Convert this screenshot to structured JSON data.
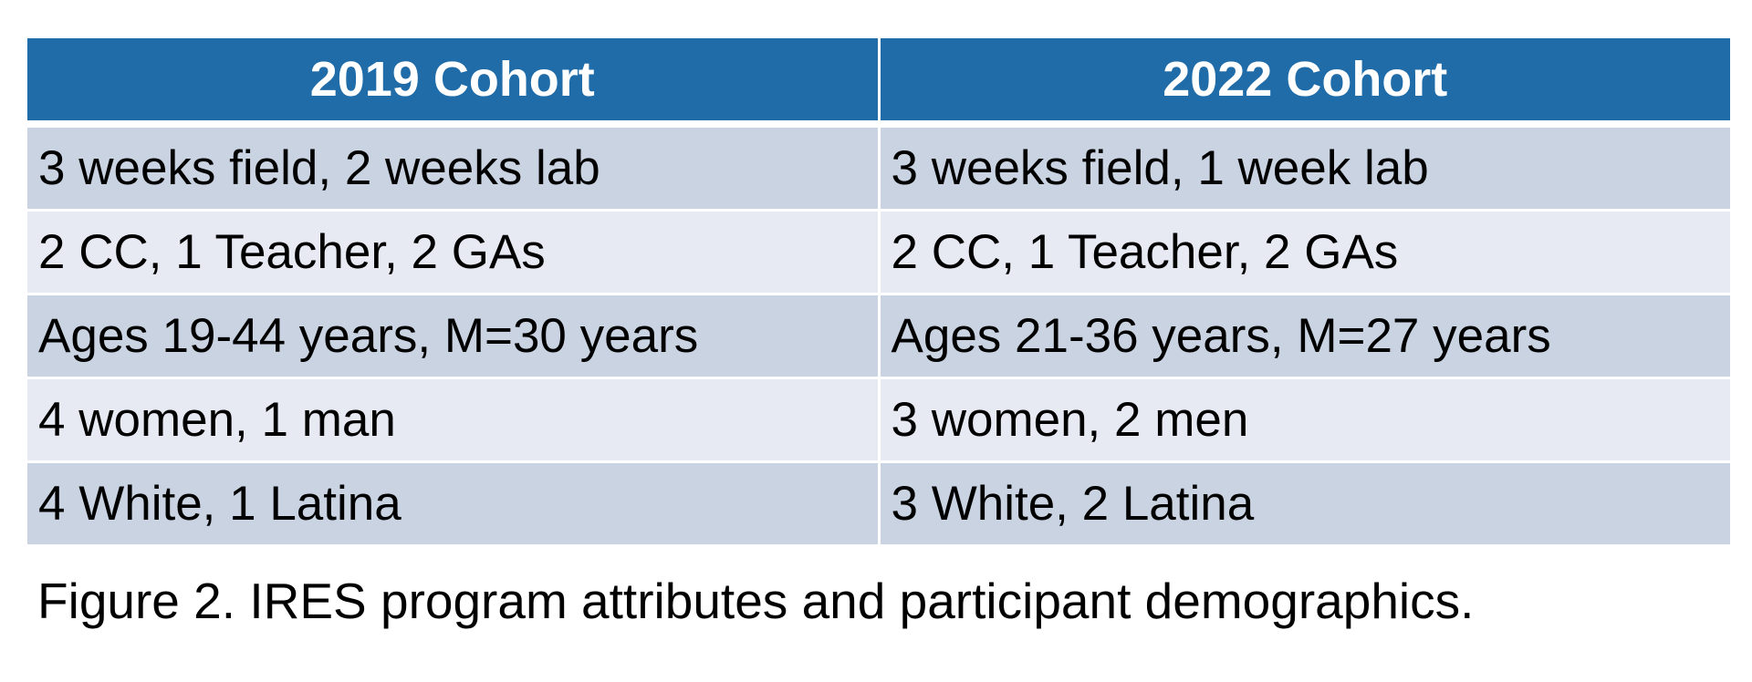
{
  "table": {
    "headers": [
      "2019 Cohort",
      "2022 Cohort"
    ],
    "rows": [
      [
        "3 weeks field, 2 weeks lab",
        "3 weeks field, 1 week lab"
      ],
      [
        "2 CC, 1 Teacher, 2 GAs",
        "2 CC, 1 Teacher, 2 GAs"
      ],
      [
        "Ages 19-44 years, M=30 years",
        "Ages 21-36 years, M=27 years"
      ],
      [
        "4 women, 1 man",
        "3 women, 2 men"
      ],
      [
        "4 White, 1 Latina",
        "3 White, 2 Latina"
      ]
    ]
  },
  "caption": "Figure 2. IRES program attributes and participant demographics.",
  "colors": {
    "header_background": "#1f6ca8",
    "header_text": "#ffffff",
    "row_dark": "#c9d3e2",
    "row_light": "#e7eaf3"
  }
}
